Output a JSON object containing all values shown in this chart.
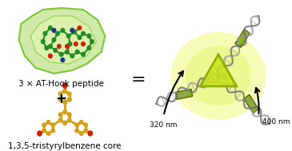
{
  "title": "",
  "bg_color": "#ffffff",
  "text_at_hook": "3 × AT-Hook peptide",
  "text_core": "1,3,5-tristyrylbenzene core",
  "text_plus": "+",
  "text_equals": "=",
  "text_320nm": "320 nm",
  "text_400nm": "400 nm",
  "green_blob_color": "#c8e89a",
  "green_blob_edge": "#6abf1a",
  "peptide_node_color": "#228B22",
  "peptide_node_red": "#cc2200",
  "peptide_node_blue": "#223388",
  "gold_color": "#d4a017",
  "gold_red": "#cc2200",
  "dna_gray": "#aaaaaa",
  "dna_dark": "#555555",
  "yellow_green_glow": "#d4f028",
  "arrow_color": "#111111",
  "label_fontsize": 7.5,
  "small_fontsize": 6.5
}
